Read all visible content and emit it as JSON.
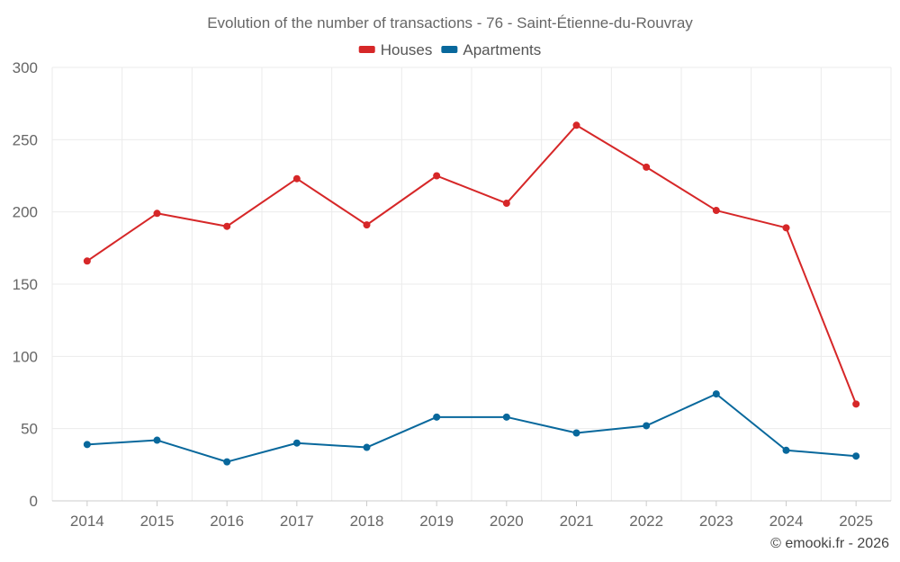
{
  "chart_data": {
    "type": "line",
    "title": "Evolution of the number of transactions - 76 - Saint-Étienne-du-Rouvray",
    "categories": [
      "2014",
      "2015",
      "2016",
      "2017",
      "2018",
      "2019",
      "2020",
      "2021",
      "2022",
      "2023",
      "2024",
      "2025"
    ],
    "series": [
      {
        "name": "Houses",
        "color": "#d62728",
        "values": [
          166,
          199,
          190,
          223,
          191,
          225,
          206,
          260,
          231,
          201,
          189,
          67
        ]
      },
      {
        "name": "Apartments",
        "color": "#08689c",
        "values": [
          39,
          42,
          27,
          40,
          37,
          58,
          58,
          47,
          52,
          74,
          35,
          31
        ]
      }
    ],
    "ylim": [
      0,
      300
    ],
    "yticks": [
      0,
      50,
      100,
      150,
      200,
      250,
      300
    ],
    "xlabel": "",
    "ylabel": "",
    "grid": true,
    "legend": "top-center"
  },
  "credit": "© emooki.fr - 2026"
}
